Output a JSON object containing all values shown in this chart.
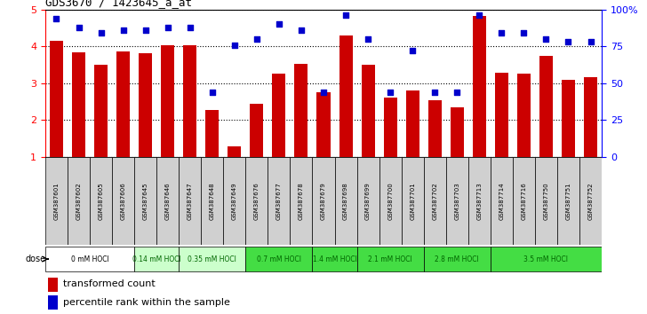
{
  "title": "GDS3670 / 1423645_a_at",
  "samples": [
    "GSM387601",
    "GSM387602",
    "GSM387605",
    "GSM387606",
    "GSM387645",
    "GSM387646",
    "GSM387647",
    "GSM387648",
    "GSM387649",
    "GSM387676",
    "GSM387677",
    "GSM387678",
    "GSM387679",
    "GSM387698",
    "GSM387699",
    "GSM387700",
    "GSM387701",
    "GSM387702",
    "GSM387703",
    "GSM387713",
    "GSM387714",
    "GSM387716",
    "GSM387750",
    "GSM387751",
    "GSM387752"
  ],
  "bar_values": [
    4.15,
    3.83,
    3.5,
    3.85,
    3.82,
    4.02,
    4.02,
    2.28,
    1.28,
    2.44,
    3.26,
    3.53,
    2.75,
    4.3,
    3.49,
    2.62,
    2.8,
    2.55,
    2.34,
    4.82,
    3.28,
    3.27,
    3.74,
    3.1,
    3.17
  ],
  "dot_values": [
    94,
    88,
    84,
    86,
    86,
    88,
    88,
    44,
    76,
    80,
    90,
    86,
    44,
    96,
    80,
    44,
    72,
    44,
    44,
    96,
    84,
    84,
    80,
    78,
    78
  ],
  "bar_color": "#cc0000",
  "dot_color": "#0000cc",
  "background_color": "#ffffff",
  "ylim_left": [
    1,
    5
  ],
  "ylim_right": [
    0,
    100
  ],
  "yticks_left": [
    1,
    2,
    3,
    4,
    5
  ],
  "yticks_right": [
    0,
    25,
    50,
    75,
    100
  ],
  "dose_groups": [
    {
      "label": "0 mM HOCl",
      "start": 0,
      "end": 4,
      "bg": "#ffffff",
      "fg": "#000000"
    },
    {
      "label": "0.14 mM HOCl",
      "start": 4,
      "end": 6,
      "bg": "#ccffcc",
      "fg": "#006600"
    },
    {
      "label": "0.35 mM HOCl",
      "start": 6,
      "end": 9,
      "bg": "#ccffcc",
      "fg": "#006600"
    },
    {
      "label": "0.7 mM HOCl",
      "start": 9,
      "end": 12,
      "bg": "#44dd44",
      "fg": "#006600"
    },
    {
      "label": "1.4 mM HOCl",
      "start": 12,
      "end": 14,
      "bg": "#44dd44",
      "fg": "#006600"
    },
    {
      "label": "2.1 mM HOCl",
      "start": 14,
      "end": 17,
      "bg": "#44dd44",
      "fg": "#006600"
    },
    {
      "label": "2.8 mM HOCl",
      "start": 17,
      "end": 20,
      "bg": "#44dd44",
      "fg": "#006600"
    },
    {
      "label": "3.5 mM HOCl",
      "start": 20,
      "end": 25,
      "bg": "#44dd44",
      "fg": "#006600"
    }
  ]
}
